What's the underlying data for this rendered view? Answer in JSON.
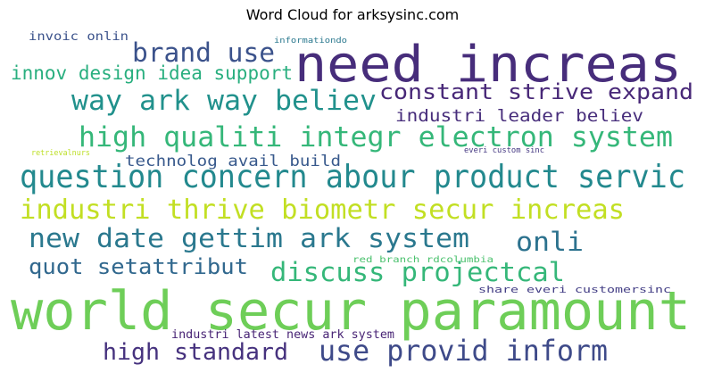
{
  "chart_data": {
    "type": "wordcloud",
    "title": "Word Cloud for arksysinc.com",
    "words": [
      {
        "text": "need increas",
        "color": "#472d7b"
      },
      {
        "text": "world secur paramount",
        "color": "#6ece58"
      },
      {
        "text": "question concern abour product servic",
        "color": "#23898e"
      },
      {
        "text": "high qualiti integr electron system",
        "color": "#35b779"
      },
      {
        "text": "industri thrive biometr secur increas",
        "color": "#c2df23"
      },
      {
        "text": "new date gettim ark system",
        "color": "#2a788e"
      },
      {
        "text": "way ark way believ",
        "color": "#21918c"
      },
      {
        "text": "brand use",
        "color": "#3b528b"
      },
      {
        "text": "constant strive expand",
        "color": "#482878"
      },
      {
        "text": "use provid inform",
        "color": "#3e4a89"
      },
      {
        "text": "discuss projectcal",
        "color": "#35b779"
      },
      {
        "text": "high standard",
        "color": "#46327e"
      },
      {
        "text": "onli",
        "color": "#2c728e"
      },
      {
        "text": "innov design idea support",
        "color": "#29af7f"
      },
      {
        "text": "industri leader believ",
        "color": "#472d7b"
      },
      {
        "text": "quot setattribut",
        "color": "#31688e"
      },
      {
        "text": "technolog avail build",
        "color": "#38598c"
      },
      {
        "text": "industri latest news ark system",
        "color": "#482475"
      },
      {
        "text": "invoic onlin",
        "color": "#3b528b"
      },
      {
        "text": "share everi customersinc",
        "color": "#433e85"
      },
      {
        "text": "red branch rdcolumbia",
        "color": "#4ac16d"
      },
      {
        "text": "informationdo",
        "color": "#2a788e"
      },
      {
        "text": "everi custom sinc",
        "color": "#453882"
      },
      {
        "text": "retrievalnurs",
        "color": "#bddf26"
      }
    ]
  }
}
